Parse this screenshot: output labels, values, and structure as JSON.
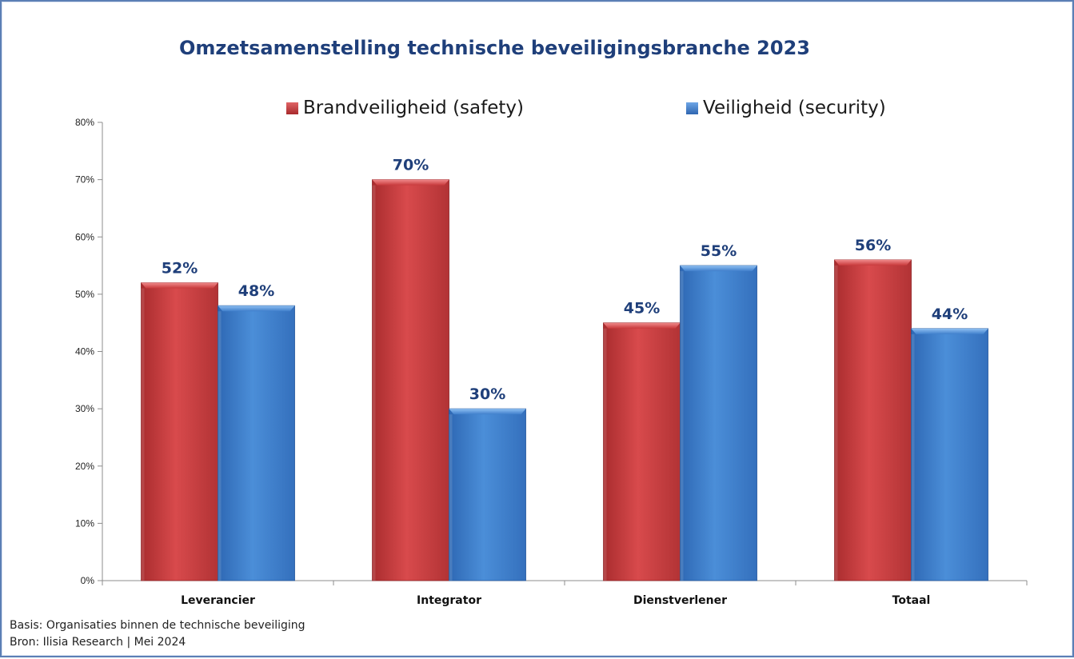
{
  "chart_data": {
    "type": "bar",
    "title": "Omzetsamenstelling technische beveiligingsbranche 2023",
    "categories": [
      "Leverancier",
      "Integrator",
      "Dienstverlener",
      "Totaal"
    ],
    "series": [
      {
        "name": "Brandveiligheid (safety)",
        "values": [
          52,
          70,
          45,
          56
        ],
        "labels": [
          "52%",
          "70%",
          "45%",
          "56%"
        ],
        "color": "#c0393b"
      },
      {
        "name": "Veiligheid (security)",
        "values": [
          48,
          30,
          55,
          44
        ],
        "labels": [
          "48%",
          "30%",
          "55%",
          "44%"
        ],
        "color": "#3d7cc9"
      }
    ],
    "ylim": [
      0,
      80
    ],
    "yticks": [
      "0%",
      "10%",
      "20%",
      "30%",
      "40%",
      "50%",
      "60%",
      "70%",
      "80%"
    ],
    "xlabel": "",
    "ylabel": "",
    "grid": false,
    "legend_position": "top"
  },
  "footnotes": {
    "basis": "Basis: Organisaties binnen de technische beveiliging",
    "source": "Bron: Ilisia Research | Mei 2024"
  }
}
